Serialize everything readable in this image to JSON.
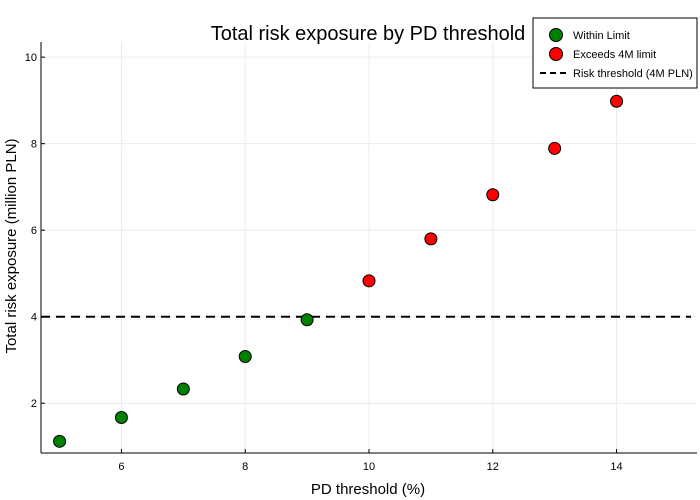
{
  "chart_data": {
    "type": "scatter",
    "title": "Total risk exposure by PD threshold",
    "xlabel": "PD threshold (%)",
    "ylabel": "Total risk exposure (million PLN)",
    "xlim": [
      4.7,
      15.3
    ],
    "ylim": [
      0.85,
      10.35
    ],
    "xticks": [
      "6",
      "8",
      "10",
      "12",
      "14"
    ],
    "xtick_values": [
      6,
      8,
      10,
      12,
      14
    ],
    "yticks": [
      "2",
      "4",
      "6",
      "8",
      "10"
    ],
    "ytick_values": [
      2,
      4,
      6,
      8,
      10
    ],
    "grid": true,
    "legend_position": "top-right",
    "series": [
      {
        "name": "Within Limit",
        "color": "#008000",
        "points": [
          {
            "x": 5,
            "y": 1.12
          },
          {
            "x": 6,
            "y": 1.67
          },
          {
            "x": 7,
            "y": 2.33
          },
          {
            "x": 8,
            "y": 3.08
          },
          {
            "x": 9,
            "y": 3.93
          }
        ]
      },
      {
        "name": "Exceeds 4M limit",
        "color": "#ff0000",
        "points": [
          {
            "x": 10,
            "y": 4.83
          },
          {
            "x": 11,
            "y": 5.8
          },
          {
            "x": 12,
            "y": 6.82
          },
          {
            "x": 13,
            "y": 7.89
          },
          {
            "x": 14,
            "y": 8.98
          }
        ]
      }
    ],
    "reference_line": {
      "name": "Risk threshold (4M PLN)",
      "y": 4,
      "style": "dashed",
      "color": "#000000"
    }
  }
}
